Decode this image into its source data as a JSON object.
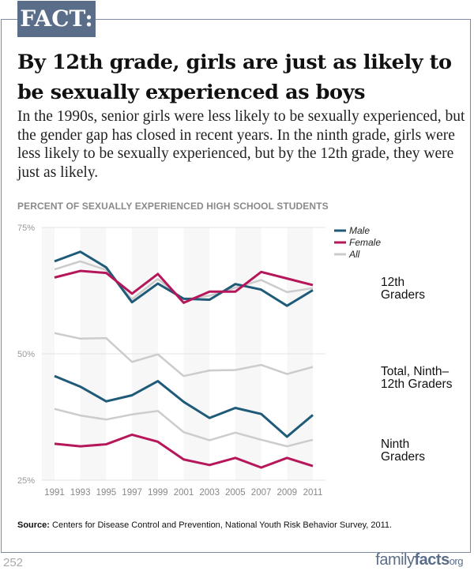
{
  "header": {
    "badge": "FACT:",
    "title": "By 12th grade, girls are just as likely to be sexually experienced as boys",
    "subtitle": "In the 1990s, senior girls were less likely to be sexually experienced, but the gender gap has closed in recent years. In the ninth grade, girls were less likely to be sexually experienced, but by the 12th grade, they were just as likely."
  },
  "chart_data": {
    "type": "line",
    "title": "PERCENT OF SEXUALLY EXPERIENCED HIGH SCHOOL STUDENTS",
    "x": [
      "1991",
      "1993",
      "1995",
      "1997",
      "1999",
      "2001",
      "2003",
      "2005",
      "2007",
      "2009",
      "2011"
    ],
    "ylim": [
      25,
      75
    ],
    "yticks": [
      "25%",
      "50%",
      "75%"
    ],
    "legend": [
      {
        "name": "Male",
        "color": "#1f5a78"
      },
      {
        "name": "Female",
        "color": "#b5175a"
      },
      {
        "name": "All",
        "color": "#cccccc"
      }
    ],
    "groups": [
      {
        "label": "12th Graders",
        "series": [
          {
            "name": "All",
            "values": [
              66.7,
              68.3,
              66.6,
              60.8,
              64.8,
              60.8,
              61.5,
              63.1,
              64.6,
              62.2,
              63.0
            ]
          },
          {
            "name": "Male",
            "values": [
              68.3,
              70.2,
              67.1,
              60.2,
              63.9,
              60.9,
              60.7,
              63.8,
              62.7,
              59.5,
              62.6
            ]
          },
          {
            "name": "Female",
            "values": [
              65.1,
              66.4,
              66.0,
              61.9,
              65.8,
              60.1,
              62.3,
              62.3,
              66.2,
              64.9,
              63.6
            ]
          }
        ]
      },
      {
        "label": "Total, Ninth–12th Graders",
        "series": [
          {
            "name": "All",
            "values": [
              54.1,
              53.0,
              53.1,
              48.4,
              49.9,
              45.6,
              46.7,
              46.8,
              47.8,
              46.0,
              47.4
            ]
          }
        ]
      },
      {
        "label": "Ninth Graders",
        "series": [
          {
            "name": "All",
            "values": [
              39.1,
              37.8,
              37.0,
              38.0,
              38.7,
              34.5,
              32.9,
              34.4,
              33.0,
              31.7,
              33.0
            ]
          },
          {
            "name": "Male",
            "values": [
              45.6,
              43.5,
              40.6,
              41.8,
              44.6,
              40.5,
              37.3,
              39.3,
              38.1,
              33.6,
              37.9
            ]
          },
          {
            "name": "Female",
            "values": [
              32.2,
              31.7,
              32.1,
              34.0,
              32.6,
              29.1,
              28.0,
              29.4,
              27.5,
              29.4,
              27.8
            ]
          }
        ]
      }
    ],
    "group_labels": [
      [
        "12th",
        "Graders"
      ],
      [
        "Total, Ninth–",
        "12th Graders"
      ],
      [
        "Ninth",
        "Graders"
      ]
    ]
  },
  "footer": {
    "source_label": "Source:",
    "source_text": " Centers for Disease Control and Prevention, National Youth Risk Behavior Survey, 2011.",
    "page": "252",
    "logo_a": "family",
    "logo_b": "facts",
    "logo_c": "org"
  }
}
